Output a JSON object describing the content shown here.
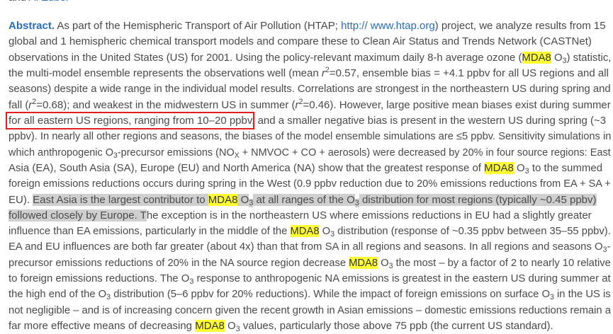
{
  "author_line": [
    {
      "text": "and ",
      "style": []
    },
    {
      "text": "A. Zuber",
      "style": [
        "link"
      ]
    }
  ],
  "abstract": {
    "lines": [
      [
        {
          "text": "Abstract.",
          "style": [
            "label"
          ]
        },
        " As part of the Hemispheric Transport of Air Pollution (HTAP; ",
        {
          "text": "http:// www.htap.org",
          "style": [
            "link"
          ]
        },
        ") project, we analyze results from 15"
      ],
      [
        "global and 1 hemispheric chemical transport models and compare these to Clean Air Status and Trends Network (CASTNet)"
      ],
      [
        "observations in the United States (US) for 2001. Using the policy-relevant maximum daily 8-h average ozone (",
        {
          "text": "MDA8",
          "style": [
            "mda"
          ]
        },
        " O",
        {
          "text": "3",
          "style": [
            "sub"
          ]
        },
        ") statistic,"
      ],
      [
        "the multi-model ensemble represents the observations well (mean ",
        {
          "text": "r",
          "style": [
            "italic"
          ]
        },
        {
          "text": "2",
          "style": [
            "sup"
          ]
        },
        "=0.57, ensemble bias = +4.1 ppbv for all US regions and all"
      ],
      [
        "seasons) despite a wide range in the individual model results. Correlations are strongest in the northeastern US during spring and"
      ],
      [
        "fall (",
        {
          "text": "r",
          "style": [
            "italic"
          ]
        },
        {
          "text": "2",
          "style": [
            "sup"
          ]
        },
        "=0.68); and weakest in the midwestern US in summer (",
        {
          "text": "r",
          "style": [
            "italic"
          ]
        },
        {
          "text": "2",
          "style": [
            "sup"
          ]
        },
        "=0.46). However, large positive mean biases exist during summer"
      ],
      [
        {
          "text": "for all eastern US regions, ranging from 10–20 ppbv",
          "style": [
            "boxed"
          ]
        },
        ", and a smaller negative bias is present in the western US during spring (~3"
      ],
      [
        "ppbv). In nearly all other regions and seasons, the biases of the model ensemble simulations are ≤5 ppbv. Sensitivity simulations in"
      ],
      [
        "which anthropogenic O",
        {
          "text": "3",
          "style": [
            "sub"
          ]
        },
        "-precursor emissions (NO",
        {
          "text": "X",
          "style": [
            "sub"
          ]
        },
        " + NMVOC + CO + aerosols) were decreased by 20% in four source regions: East"
      ],
      [
        "Asia (EA), South Asia (SA), Europe (EU) and North America (NA) show that the greatest response of ",
        {
          "text": "MDA8",
          "style": [
            "mda"
          ]
        },
        " O",
        {
          "text": "3",
          "style": [
            "sub"
          ]
        },
        " to the summed"
      ],
      [
        "foreign emissions reductions occurs during spring in the West (0.9 ppbv reduction due to 20% emissions reductions from EA + SA +"
      ],
      [
        "EU). ",
        {
          "text": "East Asia is the largest contributor to ",
          "style": [
            "grey"
          ]
        },
        {
          "text": "MDA8",
          "style": [
            "mda"
          ]
        },
        {
          "text": " O",
          "style": [
            "grey"
          ]
        },
        {
          "text": "3",
          "style": [
            "grey",
            "sub"
          ]
        },
        {
          "text": " at all ranges of the O",
          "style": [
            "grey"
          ]
        },
        {
          "text": "3",
          "style": [
            "grey",
            "sub"
          ]
        },
        {
          "text": " distribution for most regions (typically ~0.45 ppbv)",
          "style": [
            "grey"
          ]
        }
      ],
      [
        {
          "text": "followed closely by Europe. T",
          "style": [
            "grey"
          ]
        },
        "he exception is in the northeastern US where emissions reductions in EU had a slightly greater"
      ],
      [
        "influence than EA emissions, particularly in the middle of the ",
        {
          "text": "MDA8",
          "style": [
            "mda"
          ]
        },
        " O",
        {
          "text": "3",
          "style": [
            "sub"
          ]
        },
        " distribution (response of ~0.35 ppbv between 35–55 ppbv)."
      ],
      [
        "EA and EU influences are both far greater (about 4x) than that from SA in all regions and seasons. In all regions and seasons O",
        {
          "text": "3",
          "style": [
            "sub"
          ]
        },
        "-"
      ],
      [
        "precursor emissions reductions of 20% in the NA source region decrease ",
        {
          "text": "MDA8",
          "style": [
            "mda"
          ]
        },
        " O",
        {
          "text": "3",
          "style": [
            "sub"
          ]
        },
        " the most – by a factor of 2 to nearly 10 relative"
      ],
      [
        "to foreign emissions reductions. The O",
        {
          "text": "3",
          "style": [
            "sub"
          ]
        },
        " response to anthropogenic NA emissions is greatest in the eastern US during summer at"
      ],
      [
        "the high end of the O",
        {
          "text": "3",
          "style": [
            "sub"
          ]
        },
        " distribution (5–6 ppbv for 20% reductions). While the impact of foreign emissions on surface O",
        {
          "text": "3",
          "style": [
            "sub"
          ]
        },
        " in the US is"
      ],
      [
        "not negligible – and is of increasing concern given the recent growth in Asian emissions – domestic emissions reductions remain a"
      ],
      [
        "far more effective means of decreasing ",
        {
          "text": "MDA8",
          "style": [
            "mda"
          ]
        },
        " O",
        {
          "text": "3",
          "style": [
            "sub"
          ]
        },
        " values, particularly those above 75 ppb (the current US standard)."
      ]
    ]
  }
}
